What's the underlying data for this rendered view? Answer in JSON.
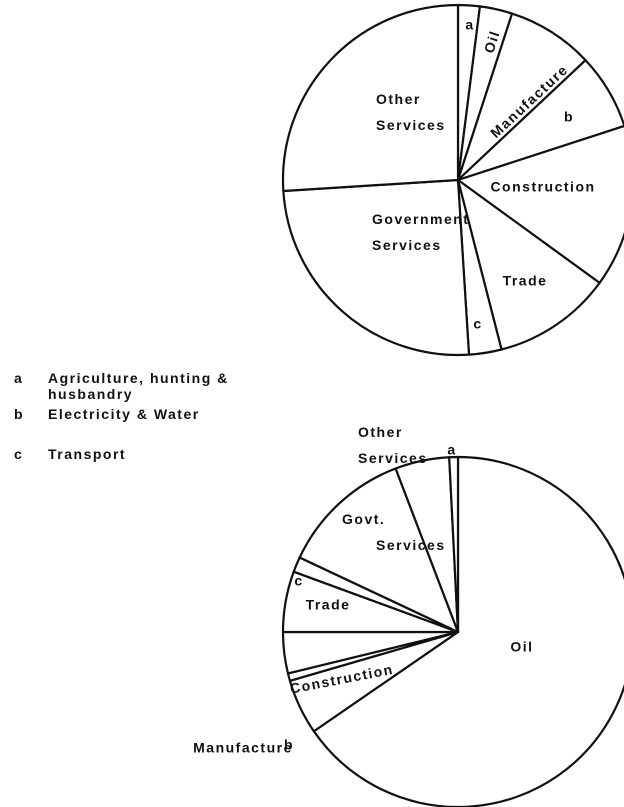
{
  "chart_data": [
    {
      "type": "pie",
      "color": "#ffffff",
      "categories": [
        "a",
        "Oil",
        "Manufacture",
        "b",
        "Construction",
        "Trade",
        "c",
        "Government Services",
        "Other Services"
      ],
      "values": [
        2,
        3,
        8,
        7,
        15,
        11,
        3,
        25,
        26
      ]
    },
    {
      "type": "pie",
      "color": "#ffffff",
      "categories": [
        "Oil",
        "Manufacture",
        "b",
        "Construction",
        "Trade",
        "c",
        "Govt. Services",
        "Other Services",
        "a"
      ],
      "values": [
        65.4,
        5.1,
        0.7,
        3.8,
        5.6,
        1.4,
        12.2,
        5.0,
        0.8
      ]
    }
  ],
  "key": [
    {
      "letter": "a",
      "text": "Agriculture, hunting & husbandry"
    },
    {
      "letter": "b",
      "text": "Electricity & Water"
    },
    {
      "letter": "c",
      "text": "Transport"
    }
  ]
}
